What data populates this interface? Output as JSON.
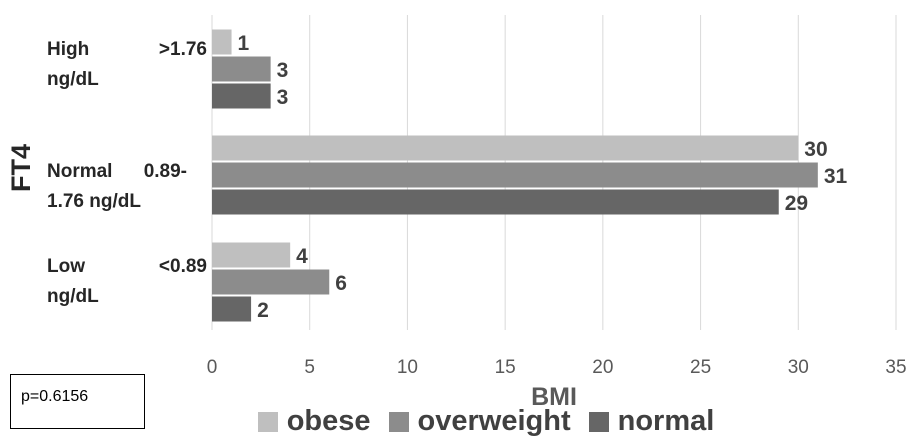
{
  "chart_data": {
    "type": "bar",
    "orientation": "horizontal",
    "title": "",
    "xlabel": "BMI",
    "ylabel": "FT4",
    "categories": [
      "High >1.76 ng/dL",
      "Normal 0.89-1.76 ng/dL",
      "Low <0.89 ng/dL"
    ],
    "category_label_lines": [
      {
        "line1_left": "High",
        "line1_right": ">1.76",
        "line2": "ng/dL"
      },
      {
        "line1_left": "Normal",
        "line1_right": "0.89-",
        "line2": "1.76 ng/dL"
      },
      {
        "line1_left": "Low",
        "line1_right": "<0.89",
        "line2": "ng/dL"
      }
    ],
    "series": [
      {
        "name": "obese",
        "color": "#bfbfbf",
        "values": [
          1,
          30,
          4
        ]
      },
      {
        "name": "overweight",
        "color": "#8c8c8c",
        "values": [
          3,
          31,
          6
        ]
      },
      {
        "name": "normal",
        "color": "#666666",
        "values": [
          3,
          29,
          2
        ]
      }
    ],
    "xlim": [
      0,
      35
    ],
    "xticks": [
      0,
      5,
      10,
      15,
      20,
      25,
      30,
      35
    ],
    "grid": true,
    "legend_position": "bottom",
    "data_labels": true
  },
  "annotation": {
    "text": "p=0.6156"
  }
}
